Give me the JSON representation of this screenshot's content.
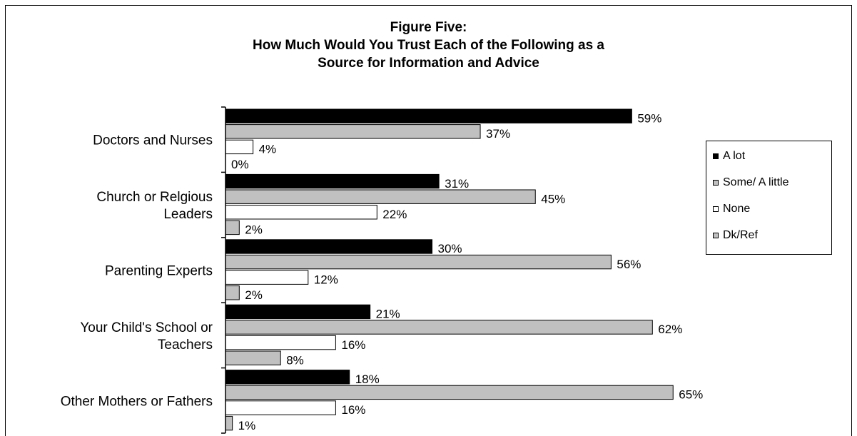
{
  "chart_data": {
    "type": "bar",
    "orientation": "horizontal",
    "title": [
      "Figure Five:",
      "How Much Would You Trust Each of the Following as a",
      "Source for Information and Advice"
    ],
    "categories": [
      [
        "Doctors and Nurses"
      ],
      [
        "Church or Relgious",
        "Leaders"
      ],
      [
        "Parenting Experts"
      ],
      [
        "Your Child's School or",
        "Teachers"
      ],
      [
        "Other Mothers or Fathers"
      ]
    ],
    "series": [
      {
        "name": "A lot",
        "color": "#000000",
        "values": [
          59,
          31,
          30,
          21,
          18
        ]
      },
      {
        "name": "Some/ A little",
        "color": "#c0c0c0",
        "values": [
          37,
          45,
          56,
          62,
          65
        ]
      },
      {
        "name": "None",
        "color": "#ffffff",
        "values": [
          4,
          22,
          12,
          16,
          16
        ]
      },
      {
        "name": "Dk/Ref",
        "color": "#c0c0c0",
        "values": [
          0,
          2,
          2,
          8,
          1
        ]
      }
    ],
    "value_suffix": "%",
    "xlim": [
      0,
      100
    ],
    "grid": false,
    "legend_position": "right"
  }
}
